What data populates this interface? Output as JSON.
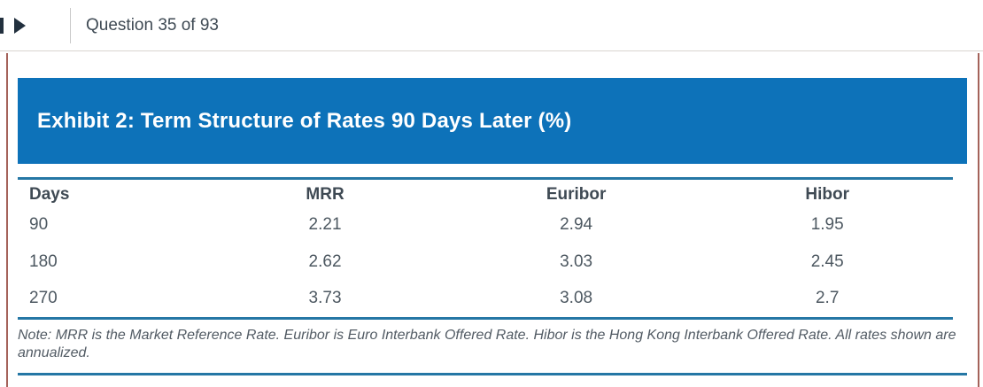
{
  "topbar": {
    "question_label": "Question 35 of 93",
    "prev_icon": "step-backward-icon (clipped at screen edge)",
    "next_icon": "play-next-icon"
  },
  "exhibit": {
    "title": "Exhibit 2: Term Structure of Rates 90 Days Later (%)",
    "table": {
      "headers": [
        "Days",
        "MRR",
        "Euribor",
        "Hibor"
      ],
      "rows": [
        [
          "90",
          "2.21",
          "2.94",
          "1.95"
        ],
        [
          "180",
          "2.62",
          "3.03",
          "2.45"
        ],
        [
          "270",
          "3.73",
          "3.08",
          "2.7"
        ]
      ]
    },
    "note": "Note: MRR is the Market Reference Rate. Euribor is Euro Interbank Offered Rate. Hibor is the Hong Kong Interbank Offered Rate. All rates shown are annualized."
  },
  "colors": {
    "banner_blue": "#0d72b9",
    "rule_blue": "#2577a5",
    "panel_border": "#a4625a",
    "icon_dark": "#22303e"
  }
}
